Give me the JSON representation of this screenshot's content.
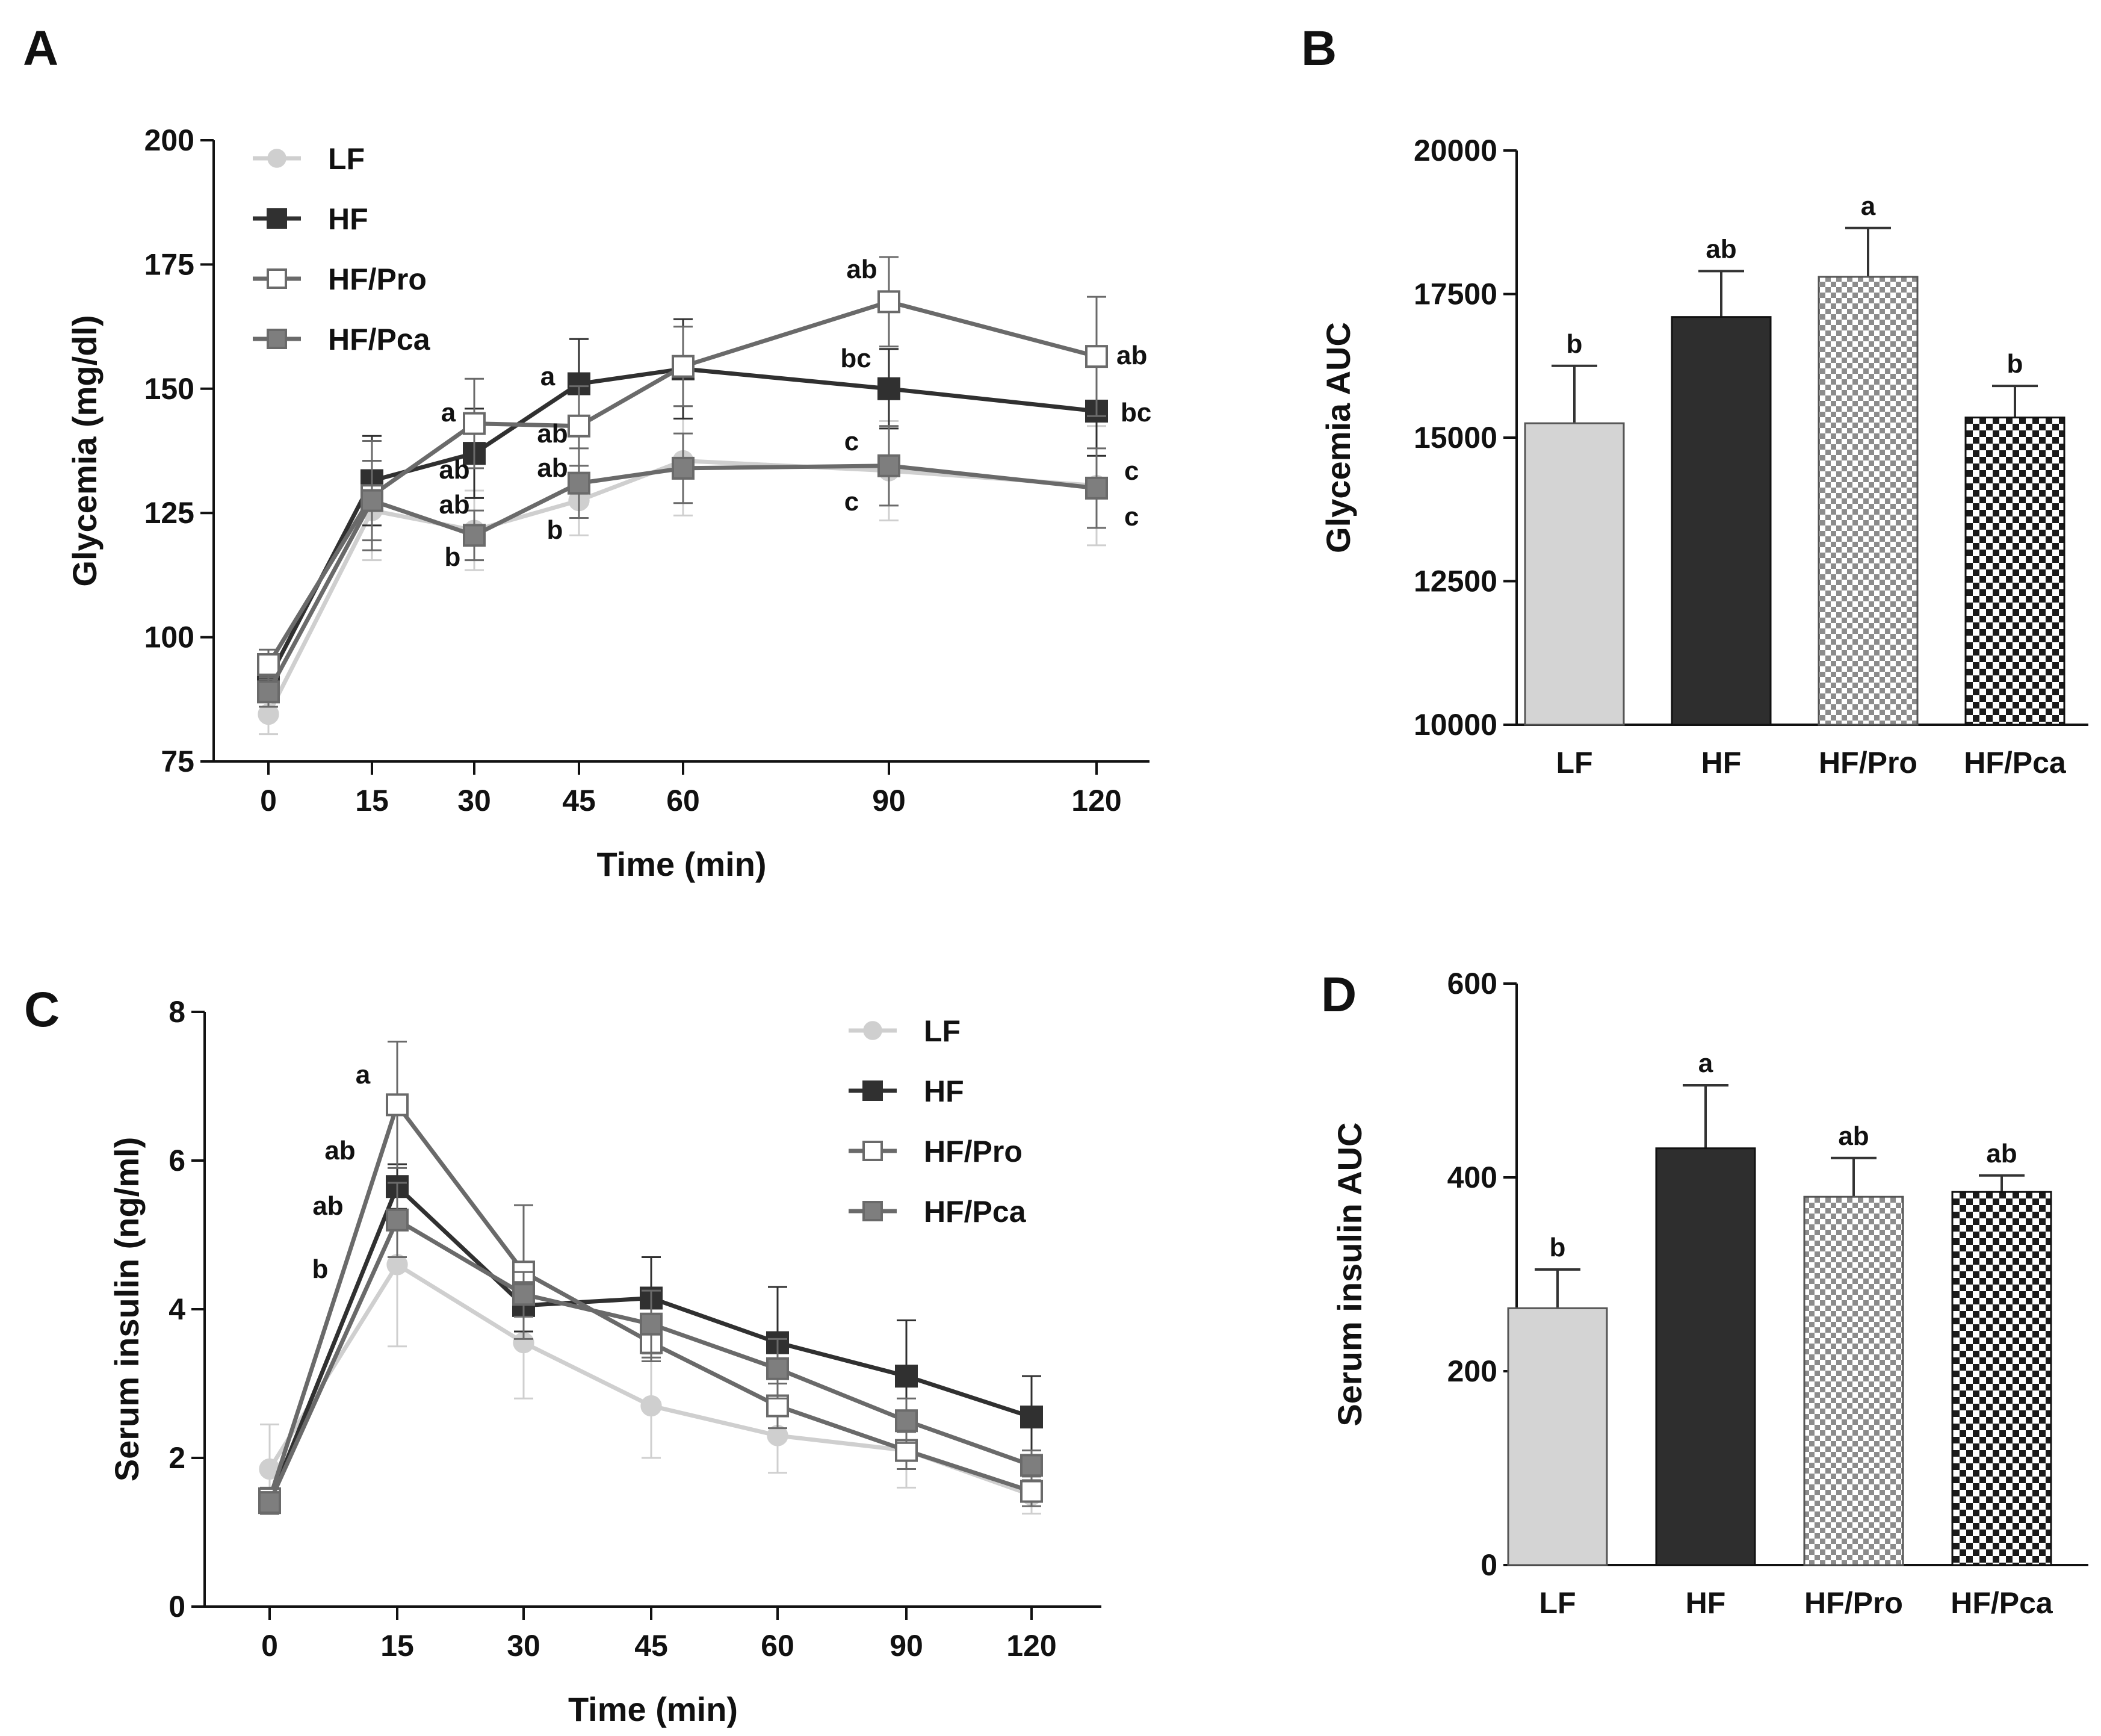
{
  "colors": {
    "LF": "#cfcfcf",
    "HF": "#303030",
    "HF_Pro": "#6a6a6a",
    "HF_Pca": "#6a6a6a",
    "HF_Pca_fill": "#7e7e7e"
  },
  "chart_data": [
    {
      "panel": "A",
      "type": "line",
      "x": [
        0,
        15,
        30,
        45,
        60,
        90,
        120
      ],
      "xlabel": "Time (min)",
      "ylabel": "Glycemia (mg/dl)",
      "ylim": [
        75,
        200
      ],
      "yticks": [
        75,
        100,
        125,
        150,
        175,
        200
      ],
      "legend": "top-left",
      "series": [
        {
          "name": "LF",
          "values": [
            84.5,
            125.5,
            121.5,
            127.5,
            135.5,
            133.5,
            130.5
          ],
          "errors": [
            4,
            10,
            8,
            7,
            11,
            10,
            12
          ]
        },
        {
          "name": "HF",
          "values": [
            91.5,
            131.5,
            137,
            151,
            154,
            150,
            145.5
          ],
          "errors": [
            3,
            9,
            9,
            9,
            10,
            8,
            9
          ]
        },
        {
          "name": "HF/Pro",
          "values": [
            94.5,
            128.5,
            143,
            142.5,
            154.5,
            167.5,
            156.5
          ],
          "errors": [
            3,
            11,
            9,
            8,
            8,
            9,
            12
          ]
        },
        {
          "name": "HF/Pca",
          "values": [
            89,
            127.5,
            120.5,
            131,
            134,
            134.5,
            130
          ],
          "errors": [
            3,
            8,
            5,
            7,
            7,
            8,
            8
          ]
        }
      ],
      "annotations": [
        "a",
        "ab",
        "ab",
        "b",
        "a",
        "ab",
        "ab",
        "b",
        "ab",
        "bc",
        "c",
        "c",
        "ab",
        "bc",
        "c",
        "c"
      ]
    },
    {
      "panel": "B",
      "type": "bar",
      "categories": [
        "LF",
        "HF",
        "HF/Pro",
        "HF/Pca"
      ],
      "values": [
        15250,
        17100,
        17800,
        15350
      ],
      "errors": [
        1000,
        800,
        850,
        550
      ],
      "ylabel": "Glycemia AUC",
      "ylim": [
        10000,
        20000
      ],
      "yticks": [
        10000,
        12500,
        15000,
        17500,
        20000
      ],
      "significance": [
        "b",
        "ab",
        "a",
        "b"
      ]
    },
    {
      "panel": "C",
      "type": "line",
      "x": [
        0,
        15,
        30,
        45,
        60,
        90,
        120
      ],
      "xlabel": "Time (min)",
      "ylabel": "Serum insulin (ng/ml)",
      "ylim": [
        0,
        8
      ],
      "yticks": [
        0,
        2,
        4,
        6,
        8
      ],
      "legend": "top-right",
      "series": [
        {
          "name": "LF",
          "values": [
            1.85,
            4.6,
            3.55,
            2.7,
            2.3,
            2.1,
            1.5
          ],
          "errors": [
            0.6,
            1.1,
            0.75,
            0.7,
            0.5,
            0.5,
            0.25
          ]
        },
        {
          "name": "HF",
          "values": [
            1.4,
            5.65,
            4.05,
            4.15,
            3.55,
            3.1,
            2.55
          ],
          "errors": [
            0.15,
            0.3,
            0.35,
            0.55,
            0.75,
            0.75,
            0.55
          ]
        },
        {
          "name": "HF/Pro",
          "values": [
            1.45,
            6.75,
            4.5,
            3.55,
            2.7,
            2.1,
            1.55
          ],
          "errors": [
            0.15,
            0.85,
            0.9,
            0.25,
            0.3,
            0.25,
            0.2
          ]
        },
        {
          "name": "HF/Pca",
          "values": [
            1.4,
            5.2,
            4.2,
            3.8,
            3.2,
            2.5,
            1.9
          ],
          "errors": [
            0.1,
            0.5,
            0.3,
            0.45,
            0.4,
            0.3,
            0.2
          ]
        }
      ],
      "annotations": [
        "a",
        "ab",
        "ab",
        "b"
      ]
    },
    {
      "panel": "D",
      "type": "bar",
      "categories": [
        "LF",
        "HF",
        "HF/Pro",
        "HF/Pca"
      ],
      "values": [
        265,
        430,
        380,
        385
      ],
      "errors": [
        40,
        65,
        40,
        17
      ],
      "ylabel": "Serum insulin AUC",
      "ylim": [
        0,
        600
      ],
      "yticks": [
        0,
        200,
        400,
        600
      ],
      "significance": [
        "b",
        "a",
        "ab",
        "ab"
      ]
    }
  ]
}
